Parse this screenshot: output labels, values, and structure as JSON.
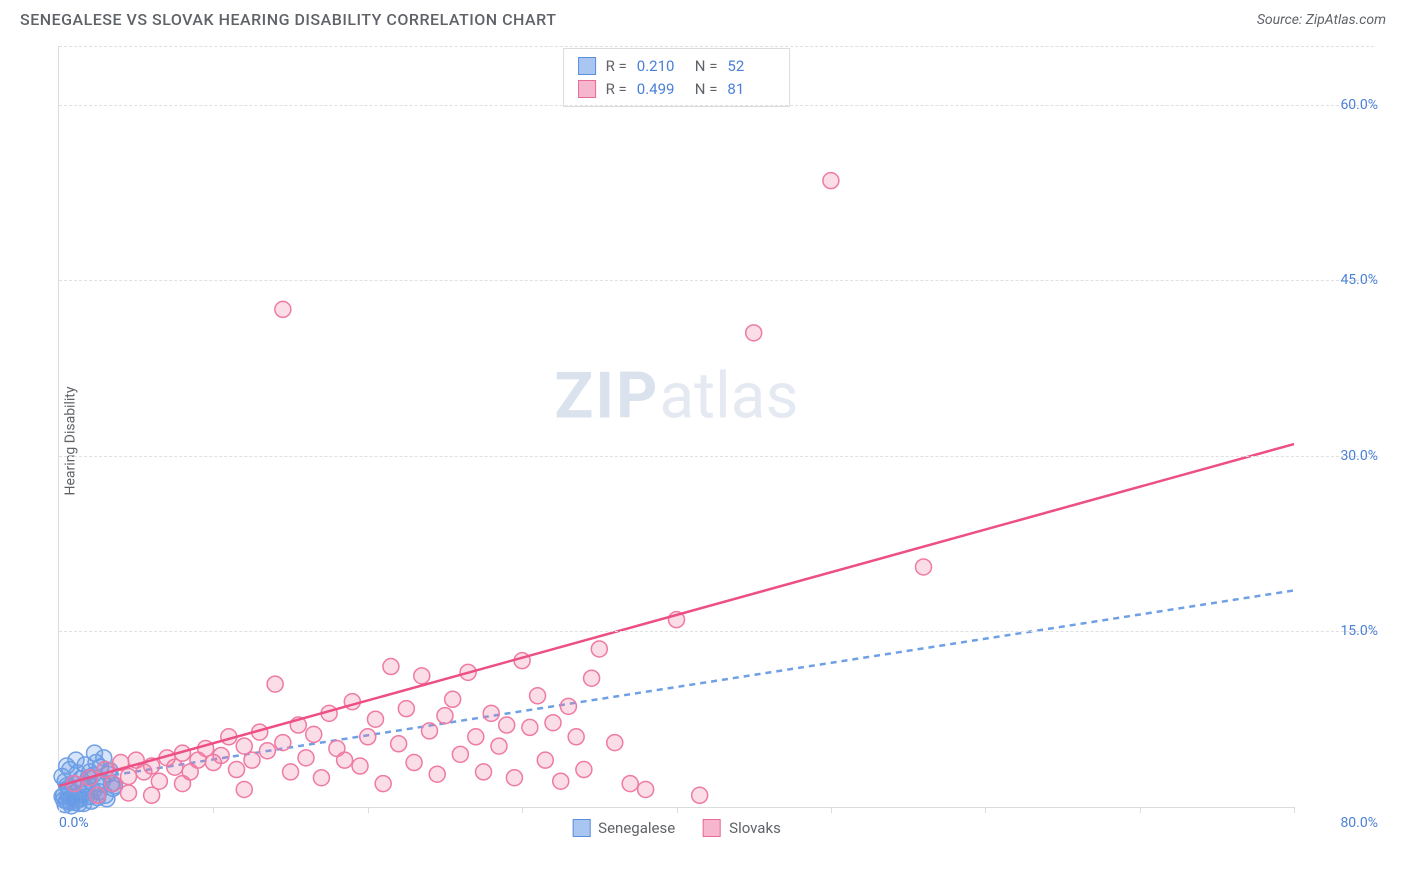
{
  "header": {
    "title": "SENEGALESE VS SLOVAK HEARING DISABILITY CORRELATION CHART",
    "source_prefix": "Source: ",
    "source": "ZipAtlas.com"
  },
  "watermark": {
    "bold": "ZIP",
    "rest": "atlas"
  },
  "chart": {
    "type": "scatter",
    "ylabel": "Hearing Disability",
    "background_color": "#ffffff",
    "grid_color": "#e0e0e0",
    "axis_color": "#dadce0",
    "tick_label_color": "#4a80d6",
    "tick_fontsize": 14,
    "label_fontsize": 14,
    "xlim": [
      0,
      80
    ],
    "ylim": [
      0,
      65
    ],
    "x_origin_label": "0.0%",
    "x_max_label": "80.0%",
    "x_tick_positions": [
      0,
      10,
      20,
      30,
      40,
      50,
      60,
      70,
      80
    ],
    "y_grid": [
      {
        "value": 15,
        "label": "15.0%"
      },
      {
        "value": 30,
        "label": "30.0%"
      },
      {
        "value": 45,
        "label": "45.0%"
      },
      {
        "value": 60,
        "label": "60.0%"
      }
    ],
    "marker_radius": 8,
    "marker_stroke_width": 1.5,
    "trend_line_width": 2.5,
    "series": [
      {
        "key": "senegalese",
        "label": "Senegalese",
        "fill": "rgba(100,150,230,0.25)",
        "stroke": "#6fa0e6",
        "swatch_fill": "#a9c6f2",
        "swatch_border": "#5b8edb",
        "R": "0.210",
        "N": "52",
        "trend": {
          "x1": 0,
          "y1": 2.0,
          "x2": 80,
          "y2": 18.5,
          "color": "#6fa0e6",
          "dash": "6,5"
        },
        "points": [
          [
            0.3,
            1.0
          ],
          [
            0.5,
            0.5
          ],
          [
            0.6,
            1.6
          ],
          [
            0.8,
            0.8
          ],
          [
            0.4,
            2.2
          ],
          [
            1.0,
            1.2
          ],
          [
            1.2,
            0.6
          ],
          [
            1.4,
            2.4
          ],
          [
            1.6,
            1.9
          ],
          [
            1.8,
            0.9
          ],
          [
            2.0,
            3.0
          ],
          [
            2.2,
            1.4
          ],
          [
            2.5,
            2.0
          ],
          [
            2.7,
            3.4
          ],
          [
            2.3,
            4.6
          ],
          [
            3.0,
            1.0
          ],
          [
            3.2,
            2.8
          ],
          [
            3.5,
            1.6
          ],
          [
            0.2,
            2.6
          ],
          [
            0.7,
            3.2
          ],
          [
            1.1,
            4.0
          ],
          [
            1.3,
            0.3
          ],
          [
            1.5,
            1.1
          ],
          [
            1.9,
            2.5
          ],
          [
            2.1,
            0.5
          ],
          [
            2.4,
            3.8
          ],
          [
            2.6,
            1.3
          ],
          [
            2.8,
            2.2
          ],
          [
            3.1,
            0.7
          ],
          [
            3.3,
            3.1
          ],
          [
            0.9,
            2.0
          ],
          [
            0.4,
            0.2
          ],
          [
            0.6,
            1.0
          ],
          [
            1.0,
            0.4
          ],
          [
            1.7,
            3.6
          ],
          [
            0.5,
            1.8
          ],
          [
            2.0,
            0.9
          ],
          [
            3.4,
            2.0
          ],
          [
            0.8,
            0.1
          ],
          [
            1.2,
            2.9
          ],
          [
            0.3,
            0.6
          ],
          [
            2.9,
            4.2
          ],
          [
            1.6,
            0.3
          ],
          [
            0.2,
            0.9
          ],
          [
            3.6,
            1.8
          ],
          [
            1.4,
            0.7
          ],
          [
            0.7,
            0.4
          ],
          [
            2.2,
            2.7
          ],
          [
            0.5,
            3.5
          ],
          [
            1.8,
            1.5
          ],
          [
            0.9,
            0.6
          ],
          [
            2.5,
            0.8
          ]
        ]
      },
      {
        "key": "slovaks",
        "label": "Slovaks",
        "fill": "rgba(240,120,160,0.25)",
        "stroke": "#ef7aa3",
        "swatch_fill": "#f6b6cd",
        "swatch_border": "#e86b95",
        "R": "0.499",
        "N": "81",
        "trend": {
          "x1": 0,
          "y1": 1.8,
          "x2": 80,
          "y2": 31.0,
          "color": "#ed4f85",
          "dash": ""
        },
        "points": [
          [
            1.0,
            2.0
          ],
          [
            2.0,
            2.5
          ],
          [
            2.5,
            1.0
          ],
          [
            3.0,
            3.2
          ],
          [
            3.5,
            2.0
          ],
          [
            4.0,
            3.8
          ],
          [
            4.5,
            2.6
          ],
          [
            5.0,
            4.0
          ],
          [
            5.5,
            3.0
          ],
          [
            6.0,
            3.5
          ],
          [
            6.5,
            2.2
          ],
          [
            7.0,
            4.2
          ],
          [
            7.5,
            3.4
          ],
          [
            8.0,
            4.6
          ],
          [
            8.5,
            3.0
          ],
          [
            9.0,
            4.0
          ],
          [
            9.5,
            5.0
          ],
          [
            10.0,
            3.8
          ],
          [
            10.5,
            4.4
          ],
          [
            11.0,
            6.0
          ],
          [
            11.5,
            3.2
          ],
          [
            12.0,
            5.2
          ],
          [
            12.5,
            4.0
          ],
          [
            13.0,
            6.4
          ],
          [
            13.5,
            4.8
          ],
          [
            14.0,
            10.5
          ],
          [
            14.5,
            5.5
          ],
          [
            15.0,
            3.0
          ],
          [
            15.5,
            7.0
          ],
          [
            16.0,
            4.2
          ],
          [
            16.5,
            6.2
          ],
          [
            17.0,
            2.5
          ],
          [
            17.5,
            8.0
          ],
          [
            18.0,
            5.0
          ],
          [
            18.5,
            4.0
          ],
          [
            19.0,
            9.0
          ],
          [
            19.5,
            3.5
          ],
          [
            20.0,
            6.0
          ],
          [
            20.5,
            7.5
          ],
          [
            21.0,
            2.0
          ],
          [
            21.5,
            12.0
          ],
          [
            22.0,
            5.4
          ],
          [
            22.5,
            8.4
          ],
          [
            23.0,
            3.8
          ],
          [
            23.5,
            11.2
          ],
          [
            24.0,
            6.5
          ],
          [
            24.5,
            2.8
          ],
          [
            25.0,
            7.8
          ],
          [
            25.5,
            9.2
          ],
          [
            26.0,
            4.5
          ],
          [
            26.5,
            11.5
          ],
          [
            27.0,
            6.0
          ],
          [
            27.5,
            3.0
          ],
          [
            28.0,
            8.0
          ],
          [
            28.5,
            5.2
          ],
          [
            29.0,
            7.0
          ],
          [
            29.5,
            2.5
          ],
          [
            30.0,
            12.5
          ],
          [
            30.5,
            6.8
          ],
          [
            31.0,
            9.5
          ],
          [
            31.5,
            4.0
          ],
          [
            32.0,
            7.2
          ],
          [
            32.5,
            2.2
          ],
          [
            33.0,
            8.6
          ],
          [
            33.5,
            6.0
          ],
          [
            34.0,
            3.2
          ],
          [
            34.5,
            11.0
          ],
          [
            35.0,
            13.5
          ],
          [
            36.0,
            5.5
          ],
          [
            37.0,
            2.0
          ],
          [
            38.0,
            1.5
          ],
          [
            40.0,
            16.0
          ],
          [
            41.5,
            1.0
          ],
          [
            45.0,
            40.5
          ],
          [
            50.0,
            53.5
          ],
          [
            56.0,
            20.5
          ],
          [
            14.5,
            42.5
          ],
          [
            8.0,
            2.0
          ],
          [
            12.0,
            1.5
          ],
          [
            6.0,
            1.0
          ],
          [
            4.5,
            1.2
          ]
        ]
      }
    ],
    "legend": [
      {
        "label": "Senegalese",
        "swatch_fill": "#a9c6f2",
        "swatch_border": "#5b8edb"
      },
      {
        "label": "Slovaks",
        "swatch_fill": "#f6b6cd",
        "swatch_border": "#e86b95"
      }
    ]
  }
}
